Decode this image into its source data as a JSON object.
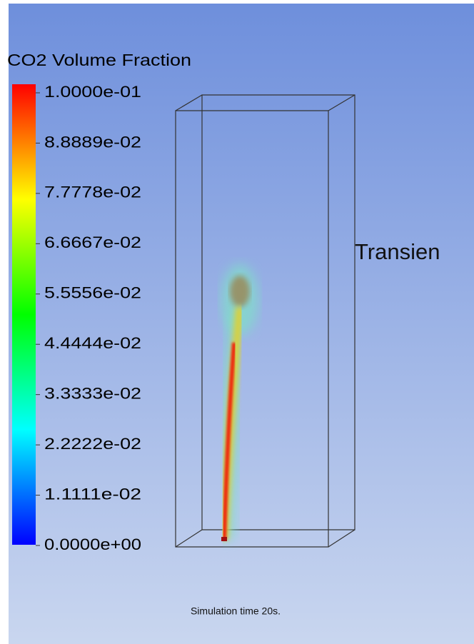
{
  "legend": {
    "title": "CO2 Volume Fraction",
    "labels": [
      "1.0000e-01",
      "8.8889e-02",
      "7.7778e-02",
      "6.6667e-02",
      "5.5556e-02",
      "4.4444e-02",
      "3.3333e-02",
      "2.2222e-02",
      "1.1111e-02",
      "0.0000e+00"
    ]
  },
  "annotation": "Transien",
  "caption": "Simulation time 20s."
}
